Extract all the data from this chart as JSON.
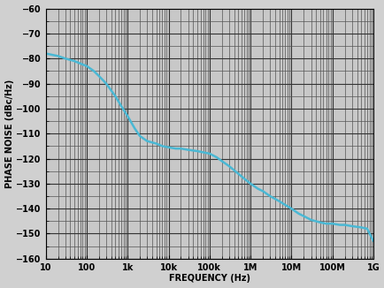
{
  "title": "",
  "xlabel": "FREQUENCY (Hz)",
  "ylabel": "PHASE NOISE (dBc/Hz)",
  "xlim": [
    10,
    1000000000.0
  ],
  "ylim": [
    -160,
    -60
  ],
  "yticks": [
    -60,
    -70,
    -80,
    -90,
    -100,
    -110,
    -120,
    -130,
    -140,
    -150,
    -160
  ],
  "xtick_labels": [
    "10",
    "100",
    "1k",
    "10k",
    "100k",
    "1M",
    "10M",
    "100M",
    "1G"
  ],
  "xtick_vals": [
    10,
    100,
    1000,
    10000,
    100000,
    1000000,
    10000000,
    100000000,
    1000000000
  ],
  "line_color": "#4ab8d4",
  "line_width": 1.8,
  "bg_color": "#d0d0d0",
  "plot_bg_color": "#c8c8c8",
  "grid_major_color": "#333333",
  "grid_minor_color": "#555555",
  "text_color": "#000000",
  "curve_x": [
    10,
    20,
    30,
    50,
    70,
    100,
    150,
    200,
    300,
    500,
    700,
    1000,
    1500,
    2000,
    3000,
    5000,
    7000,
    10000,
    15000,
    20000,
    30000,
    50000,
    70000,
    100000,
    150000,
    200000,
    300000,
    500000,
    700000,
    1000000,
    1500000,
    2000000,
    3000000,
    5000000,
    7000000,
    10000000,
    15000000,
    20000000,
    30000000,
    50000000,
    70000000,
    100000000,
    150000000,
    200000000,
    300000000,
    500000000,
    700000000,
    1000000000
  ],
  "curve_y": [
    -78,
    -79,
    -80,
    -81,
    -82,
    -83,
    -85,
    -87,
    -90,
    -95,
    -99,
    -103,
    -108,
    -111,
    -113,
    -114,
    -115,
    -115.5,
    -116,
    -116,
    -116.5,
    -117,
    -117.5,
    -118,
    -119.5,
    -121,
    -123,
    -126,
    -128,
    -130,
    -132,
    -133,
    -135,
    -137,
    -138.5,
    -140,
    -142,
    -143,
    -144.5,
    -145.5,
    -146,
    -146,
    -146.5,
    -146.5,
    -147,
    -147.5,
    -148,
    -153
  ]
}
